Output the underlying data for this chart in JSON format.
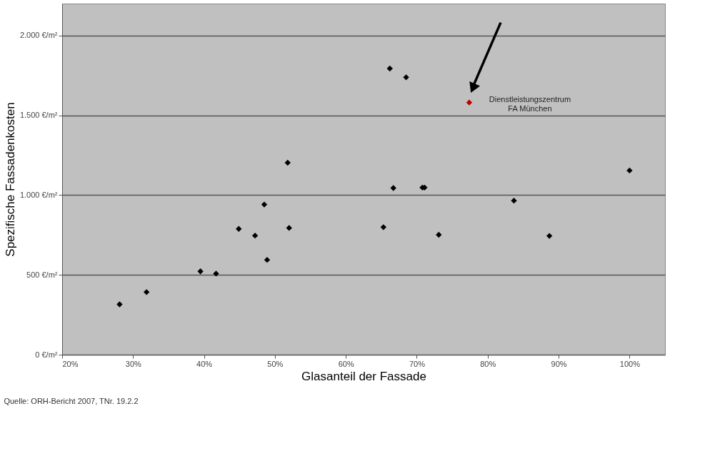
{
  "chart_data": {
    "type": "scatter",
    "xlabel": "Glasanteil der Fassade",
    "ylabel": "Spezifische Fassadenkosten",
    "series": [
      {
        "color": "#000000",
        "x": [
          28.1,
          31.9,
          39.5,
          41.7,
          44.9,
          47.2,
          48.5,
          48.9,
          51.8,
          52.0,
          65.3,
          66.2,
          66.7,
          68.5,
          70.8,
          71.1,
          73.1,
          83.7,
          88.7,
          100.0
        ],
        "values": [
          315,
          392,
          522,
          508,
          788,
          746,
          941,
          594,
          1203,
          794,
          799,
          1793,
          1044,
          1738,
          1047,
          1047,
          751,
          965,
          744,
          1154
        ]
      },
      {
        "color": "#c00000",
        "x": [
          77.4
        ],
        "values": [
          1580
        ]
      }
    ],
    "xlim": [
      20,
      105
    ],
    "xticks": [
      {
        "value": 20,
        "label": "20%"
      },
      {
        "value": 30,
        "label": "30%"
      },
      {
        "value": 40,
        "label": "40%"
      },
      {
        "value": 50,
        "label": "50%"
      },
      {
        "value": 60,
        "label": "60%"
      },
      {
        "value": 70,
        "label": "70%"
      },
      {
        "value": 80,
        "label": "80%"
      },
      {
        "value": 90,
        "label": "90%"
      },
      {
        "value": 100,
        "label": "100%"
      }
    ],
    "ylim": [
      0,
      2200
    ],
    "yticks": [
      {
        "value": 0,
        "label": "0 €/m²"
      },
      {
        "value": 500,
        "label": "500 €/m²"
      },
      {
        "value": 1000,
        "label": "1.000 €/m²"
      },
      {
        "value": 1500,
        "label": "1.500 €/m²"
      },
      {
        "value": 2000,
        "label": "2.000 €/m²"
      }
    ],
    "grid": "y",
    "marker": "diamond",
    "annotations": [
      {
        "text": "Dienstleistungszentrum\nFA München",
        "x": 77.4,
        "y": 1580
      },
      "Quelle: ORH-Bericht 2007, TNr. 19.2.2"
    ]
  }
}
